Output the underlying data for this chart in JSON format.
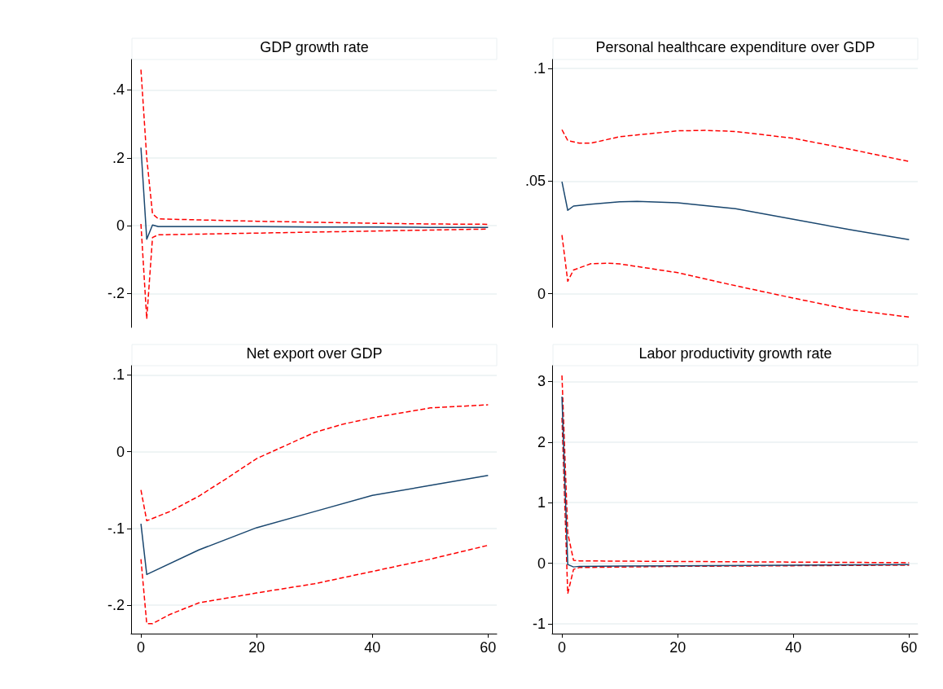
{
  "chart_data": [
    {
      "type": "line",
      "title": "GDP growth rate",
      "xlim": [
        -1.7,
        61.5
      ],
      "xticks": [
        0,
        20,
        40,
        60
      ],
      "ylim": [
        -0.3,
        0.49
      ],
      "yticks": [
        {
          "value": -0.2,
          "label": "-.2"
        },
        0,
        {
          "value": 0.2,
          "label": ".2"
        },
        {
          "value": 0.4,
          "label": ".4"
        }
      ],
      "grid": "y",
      "marker": "none",
      "tick_labels": "y",
      "series": [
        {
          "color": "#ff0000",
          "line_style": "dashed",
          "x": [
            0,
            1,
            2,
            3,
            10,
            20,
            30,
            40,
            50,
            60
          ],
          "values": [
            0.46,
            0.2,
            0.035,
            0.02,
            0.017,
            0.013,
            0.01,
            0.007,
            0.005,
            0.004
          ]
        },
        {
          "color": "#ff0000",
          "line_style": "dashed",
          "x": [
            0,
            1,
            2,
            3,
            10,
            20,
            30,
            40,
            50,
            60
          ],
          "values": [
            0.005,
            -0.275,
            -0.035,
            -0.027,
            -0.025,
            -0.022,
            -0.019,
            -0.016,
            -0.013,
            -0.01
          ]
        },
        {
          "color": "#1a476f",
          "line_style": "solid",
          "x": [
            0,
            1,
            2,
            3,
            10,
            20,
            30,
            40,
            50,
            60
          ],
          "values": [
            0.23,
            -0.04,
            0.002,
            -0.003,
            -0.003,
            -0.003,
            -0.004,
            -0.004,
            -0.005,
            -0.005
          ]
        }
      ]
    },
    {
      "type": "line",
      "title": "Personal healthcare expenditure over GDP",
      "xlim": [
        -1.7,
        61.5
      ],
      "xticks": [
        0,
        20,
        40,
        60
      ],
      "ylim": [
        -0.015,
        0.104
      ],
      "yticks": [
        0,
        {
          "value": 0.05,
          "label": ".05"
        },
        {
          "value": 0.1,
          "label": ".1"
        }
      ],
      "grid": "y",
      "marker": "none",
      "tick_labels": "y",
      "series": [
        {
          "color": "#ff0000",
          "line_style": "dashed",
          "x": [
            0,
            1,
            3,
            5,
            10,
            20,
            25,
            30,
            40,
            50,
            60
          ],
          "values": [
            0.0728,
            0.068,
            0.0668,
            0.0668,
            0.0697,
            0.0723,
            0.0725,
            0.072,
            0.069,
            0.064,
            0.0587
          ]
        },
        {
          "color": "#ff0000",
          "line_style": "dashed",
          "x": [
            0,
            1,
            2,
            5,
            8,
            10,
            20,
            30,
            40,
            50,
            60
          ],
          "values": [
            0.026,
            0.0055,
            0.0105,
            0.0133,
            0.0135,
            0.0132,
            0.0093,
            0.0035,
            -0.002,
            -0.0072,
            -0.0104
          ]
        },
        {
          "color": "#1a476f",
          "line_style": "solid",
          "x": [
            0,
            1,
            2,
            5,
            10,
            13,
            20,
            30,
            40,
            50,
            60
          ],
          "values": [
            0.0497,
            0.037,
            0.0389,
            0.0397,
            0.0408,
            0.041,
            0.0403,
            0.0377,
            0.033,
            0.0283,
            0.024
          ]
        }
      ]
    },
    {
      "type": "line",
      "title": "Net export over GDP",
      "xlim": [
        -1.7,
        61.5
      ],
      "xticks": [
        0,
        20,
        40,
        60
      ],
      "ylim": [
        -0.237,
        0.112
      ],
      "yticks": [
        {
          "value": -0.2,
          "label": "-.2"
        },
        {
          "value": -0.1,
          "label": "-.1"
        },
        0,
        {
          "value": 0.1,
          "label": ".1"
        }
      ],
      "grid": "y",
      "marker": "none",
      "series": [
        {
          "color": "#ff0000",
          "line_style": "dashed",
          "x": [
            0,
            1,
            5,
            10,
            15,
            20,
            25,
            30,
            35,
            40,
            50,
            60
          ],
          "values": [
            -0.05,
            -0.09,
            -0.078,
            -0.058,
            -0.034,
            -0.009,
            0.008,
            0.025,
            0.036,
            0.044,
            0.057,
            0.061
          ]
        },
        {
          "color": "#ff0000",
          "line_style": "dashed",
          "x": [
            0,
            1,
            2,
            5,
            10,
            20,
            30,
            40,
            50,
            60
          ],
          "values": [
            -0.14,
            -0.224,
            -0.224,
            -0.212,
            -0.197,
            -0.184,
            -0.172,
            -0.156,
            -0.14,
            -0.122
          ]
        },
        {
          "color": "#1a476f",
          "line_style": "solid",
          "x": [
            0,
            1,
            10,
            20,
            30,
            40,
            50,
            60
          ],
          "values": [
            -0.094,
            -0.16,
            -0.128,
            -0.099,
            -0.078,
            -0.057,
            -0.044,
            -0.031
          ]
        }
      ]
    },
    {
      "type": "line",
      "title": "Labor productivity growth rate",
      "xlim": [
        -1.7,
        61.5
      ],
      "xticks": [
        0,
        20,
        40,
        60
      ],
      "ylim": [
        -1.16,
        3.26
      ],
      "yticks": [
        -1,
        0,
        1,
        2,
        3
      ],
      "grid": "y",
      "marker": "none",
      "series": [
        {
          "color": "#ff0000",
          "line_style": "dashed",
          "x": [
            0,
            1,
            2,
            3,
            20,
            40,
            60
          ],
          "values": [
            3.1,
            0.5,
            0.05,
            0.04,
            0.03,
            0.02,
            0.01
          ]
        },
        {
          "color": "#ff0000",
          "line_style": "dashed",
          "x": [
            0,
            1,
            2,
            3,
            20,
            40,
            60
          ],
          "values": [
            2.4,
            -0.5,
            -0.1,
            -0.07,
            -0.05,
            -0.04,
            -0.03
          ]
        },
        {
          "color": "#1a476f",
          "line_style": "solid",
          "x": [
            0,
            1,
            2,
            3,
            20,
            40,
            60
          ],
          "values": [
            2.75,
            -0.02,
            -0.06,
            -0.05,
            -0.04,
            -0.03,
            -0.02
          ]
        }
      ]
    }
  ]
}
